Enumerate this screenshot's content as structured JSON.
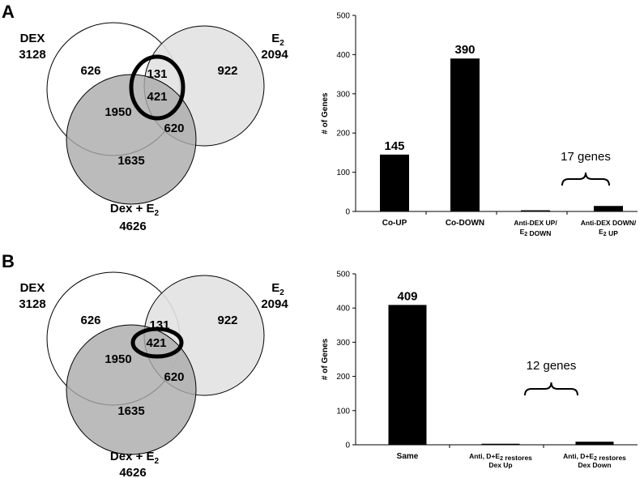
{
  "panels": [
    {
      "label": "A",
      "venn": {
        "sets": {
          "dex": {
            "name": "DEX",
            "total": "3128"
          },
          "e2": {
            "name_main": "E",
            "name_sub": "2",
            "total": "2094"
          },
          "dex_e2": {
            "name_main": "Dex + E",
            "name_sub": "2",
            "total": "4626"
          }
        },
        "regions": {
          "dex_only": "626",
          "e2_only": "922",
          "dexe2_only": "1635",
          "dex_e2": "131",
          "dex_dexe2": "1950",
          "e2_dexe2": "620",
          "all": "421"
        }
      }
    },
    {
      "label": "B",
      "venn": {
        "sets": {
          "dex": {
            "name": "DEX",
            "total": "3128"
          },
          "e2": {
            "name_main": "E",
            "name_sub": "2",
            "total": "2094"
          },
          "dex_e2": {
            "name_main": "Dex + E",
            "name_sub": "2",
            "total": "4626"
          }
        },
        "regions": {
          "dex_only": "626",
          "e2_only": "922",
          "dexe2_only": "1635",
          "dex_e2": "131",
          "dex_dexe2": "1950",
          "e2_dexe2": "620",
          "all": "421"
        }
      }
    }
  ],
  "chart_data": [
    {
      "type": "bar",
      "title": "",
      "xlabel": "",
      "ylabel": "# of Genes",
      "ylim": [
        0,
        500
      ],
      "yticks": [
        "0",
        "100",
        "200",
        "300",
        "400",
        "500"
      ],
      "categories": [
        [
          "Co-UP"
        ],
        [
          "Co-DOWN"
        ],
        [
          "Anti-DEX UP/",
          "E₂ DOWN"
        ],
        [
          "Anti-DEX DOWN/",
          "E₂ UP"
        ]
      ],
      "values": [
        145,
        390,
        3,
        14
      ],
      "data_labels": [
        "145",
        "390",
        "",
        ""
      ],
      "annotation": "17 genes"
    },
    {
      "type": "bar",
      "title": "",
      "xlabel": "",
      "ylabel": "# of Genes",
      "ylim": [
        0,
        500
      ],
      "yticks": [
        "0",
        "100",
        "200",
        "300",
        "400",
        "500"
      ],
      "categories": [
        [
          "Same"
        ],
        [
          "Anti, D+E₂ restores",
          "Dex Up"
        ],
        [
          "Anti, D+E₂ restores",
          "Dex Down"
        ]
      ],
      "values": [
        409,
        3,
        9
      ],
      "data_labels": [
        "409",
        "",
        ""
      ],
      "annotation": "12 genes"
    }
  ]
}
